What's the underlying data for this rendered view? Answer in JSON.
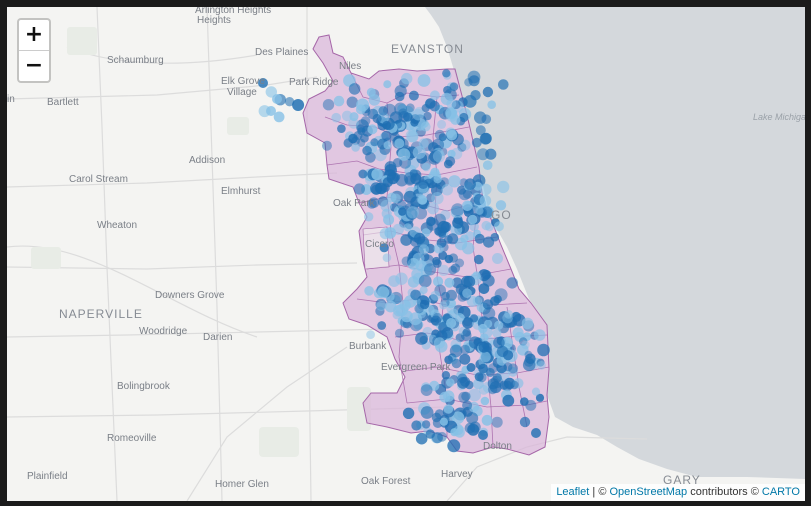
{
  "map": {
    "zoom_controls": {
      "zoom_in": "+",
      "zoom_out": "−"
    },
    "attribution": {
      "leaflet": "Leaflet",
      "separator": " | © ",
      "osm": "OpenStreetMap",
      "contributors": " contributors © ",
      "carto": "CARTO"
    },
    "place_labels": [
      "Arlington Heights",
      "Des Plaines",
      "Schaumburg",
      "EVANSTON",
      "Niles",
      "Elk Grove Village",
      "Park Ridge",
      "Bartlett",
      "Addison",
      "Carol Stream",
      "Elmhurst",
      "Oak Park",
      "Wheaton",
      "Cicero",
      "Downers Grove",
      "NAPERVILLE",
      "Woodridge",
      "Darien",
      "Burbank",
      "Evergreen Park",
      "Bolingbrook",
      "Romeoville",
      "Plainfield",
      "Homer Glen",
      "Oak Forest",
      "Harvey",
      "Dolton",
      "GARY",
      "Lake Michigan",
      "GO",
      "in"
    ],
    "colors": {
      "land": "#f4f4f2",
      "water": "#d4d8dc",
      "boundary_fill": "#d9b6d9",
      "boundary_stroke": "#a566a8",
      "point_dark": "#1f6fb3",
      "point_light": "#86c1e6"
    },
    "layers": [
      "basemap-tiles",
      "chicago-community-area-boundaries",
      "circle-markers"
    ]
  }
}
